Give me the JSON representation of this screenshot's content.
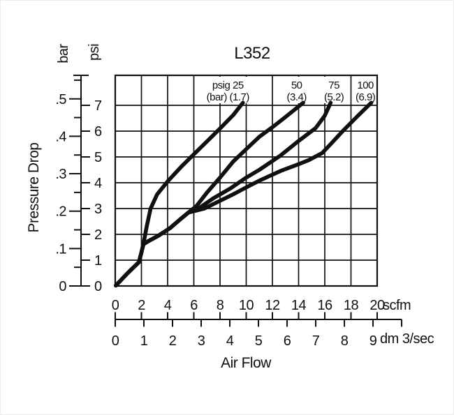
{
  "page": {
    "background": "#ffffff",
    "ink": "#101010"
  },
  "chart_data": {
    "type": "line",
    "title": "L352",
    "x_axis": {
      "title": "Air Flow",
      "primary": {
        "unit": "scfm",
        "ticks": [
          0,
          2,
          4,
          6,
          8,
          10,
          12,
          14,
          16,
          18,
          20
        ],
        "min": 0,
        "max": 20
      },
      "secondary": {
        "unit": "dm 3/sec",
        "ticks": [
          0,
          1,
          2,
          3,
          4,
          5,
          6,
          7,
          8,
          9
        ],
        "scfm_per_unit": 2.187,
        "extra_end_tick": true
      }
    },
    "y_axis": {
      "title": "Pressure Drop",
      "primary": {
        "unit": "psi",
        "ticks": [
          0,
          1,
          2,
          3,
          4,
          5,
          6,
          7
        ],
        "min": 0,
        "plot_top_psi": 8.16
      },
      "secondary": {
        "unit": "bar",
        "major_tick_labels": [
          "0",
          ".1",
          ".2",
          ".3",
          ".4",
          ".5"
        ],
        "major_tick_values": [
          0,
          0.1,
          0.2,
          0.3,
          0.4,
          0.5
        ],
        "minor_tick_values": [
          0.05,
          0.15,
          0.25,
          0.35,
          0.45,
          0.55
        ],
        "psi_per_unit": 14.5
      }
    },
    "grid": {
      "x_step_scfm": 2,
      "y_step_psi": 1,
      "grid_on": true
    },
    "legend_note": "curve labels show inlet pressure: psig (bar)",
    "series": [
      {
        "name": "psig 25",
        "pressure_psig": 25,
        "pressure_bar": 1.7,
        "label_lines": [
          "psig 25",
          "(bar) (1.7)"
        ],
        "label_at_scfm": 8.6,
        "label_box_w": 76,
        "points_scfm_psi": [
          [
            0.05,
            0.02
          ],
          [
            0.95,
            0.5
          ],
          [
            1.8,
            0.92
          ],
          [
            2.0,
            1.3
          ],
          [
            2.15,
            1.62
          ],
          [
            2.4,
            2.3
          ],
          [
            2.7,
            3.0
          ],
          [
            3.2,
            3.55
          ],
          [
            4,
            4.05
          ],
          [
            5,
            4.6
          ],
          [
            6,
            5.1
          ],
          [
            7,
            5.6
          ],
          [
            8,
            6.1
          ],
          [
            9,
            6.62
          ],
          [
            9.75,
            7.1
          ]
        ]
      },
      {
        "name": "50",
        "pressure_psig": 50,
        "pressure_bar": 3.4,
        "label_lines": [
          "50",
          "(3.4)"
        ],
        "label_at_scfm": 13.85,
        "label_box_w": 36,
        "points_scfm_psi": [
          [
            0.05,
            0.02
          ],
          [
            0.95,
            0.5
          ],
          [
            1.8,
            0.92
          ],
          [
            2.0,
            1.3
          ],
          [
            2.15,
            1.62
          ],
          [
            2.5,
            1.73
          ],
          [
            3.3,
            1.95
          ],
          [
            4.2,
            2.25
          ],
          [
            5.0,
            2.6
          ],
          [
            5.6,
            2.85
          ],
          [
            6.2,
            3.1
          ],
          [
            7,
            3.62
          ],
          [
            8,
            4.2
          ],
          [
            9,
            4.82
          ],
          [
            10,
            5.3
          ],
          [
            11,
            5.78
          ],
          [
            12,
            6.15
          ],
          [
            13,
            6.55
          ],
          [
            14.35,
            7.1
          ]
        ]
      },
      {
        "name": "75",
        "pressure_psig": 75,
        "pressure_bar": 5.2,
        "label_lines": [
          "75",
          "(5.2)"
        ],
        "label_at_scfm": 16.7,
        "label_box_w": 36,
        "points_scfm_psi": [
          [
            0.05,
            0.02
          ],
          [
            0.95,
            0.5
          ],
          [
            1.8,
            0.92
          ],
          [
            2.0,
            1.3
          ],
          [
            2.15,
            1.62
          ],
          [
            2.5,
            1.73
          ],
          [
            3.3,
            1.95
          ],
          [
            4.2,
            2.25
          ],
          [
            5.0,
            2.6
          ],
          [
            5.6,
            2.85
          ],
          [
            6.5,
            3.05
          ],
          [
            7.5,
            3.4
          ],
          [
            8.8,
            3.78
          ],
          [
            10,
            4.2
          ],
          [
            11,
            4.5
          ],
          [
            12.6,
            5.05
          ],
          [
            14,
            5.62
          ],
          [
            15.3,
            6.12
          ],
          [
            16,
            6.6
          ],
          [
            16.45,
            7.1
          ]
        ]
      },
      {
        "name": "100",
        "pressure_psig": 100,
        "pressure_bar": 6.9,
        "label_lines": [
          "100",
          "(6.9)"
        ],
        "label_at_scfm": 19.1,
        "label_box_w": 38,
        "points_scfm_psi": [
          [
            0.05,
            0.02
          ],
          [
            0.95,
            0.5
          ],
          [
            1.8,
            0.92
          ],
          [
            2.0,
            1.3
          ],
          [
            2.15,
            1.62
          ],
          [
            2.5,
            1.73
          ],
          [
            3.3,
            1.95
          ],
          [
            4.2,
            2.25
          ],
          [
            5.0,
            2.6
          ],
          [
            5.6,
            2.85
          ],
          [
            6.8,
            3.0
          ],
          [
            8,
            3.3
          ],
          [
            9,
            3.55
          ],
          [
            10,
            3.82
          ],
          [
            11,
            4.08
          ],
          [
            12.6,
            4.45
          ],
          [
            14,
            4.72
          ],
          [
            14.8,
            4.88
          ],
          [
            15.8,
            5.15
          ],
          [
            16.6,
            5.58
          ],
          [
            17.4,
            6.02
          ],
          [
            18.5,
            6.58
          ],
          [
            19.55,
            7.1
          ]
        ]
      }
    ]
  }
}
